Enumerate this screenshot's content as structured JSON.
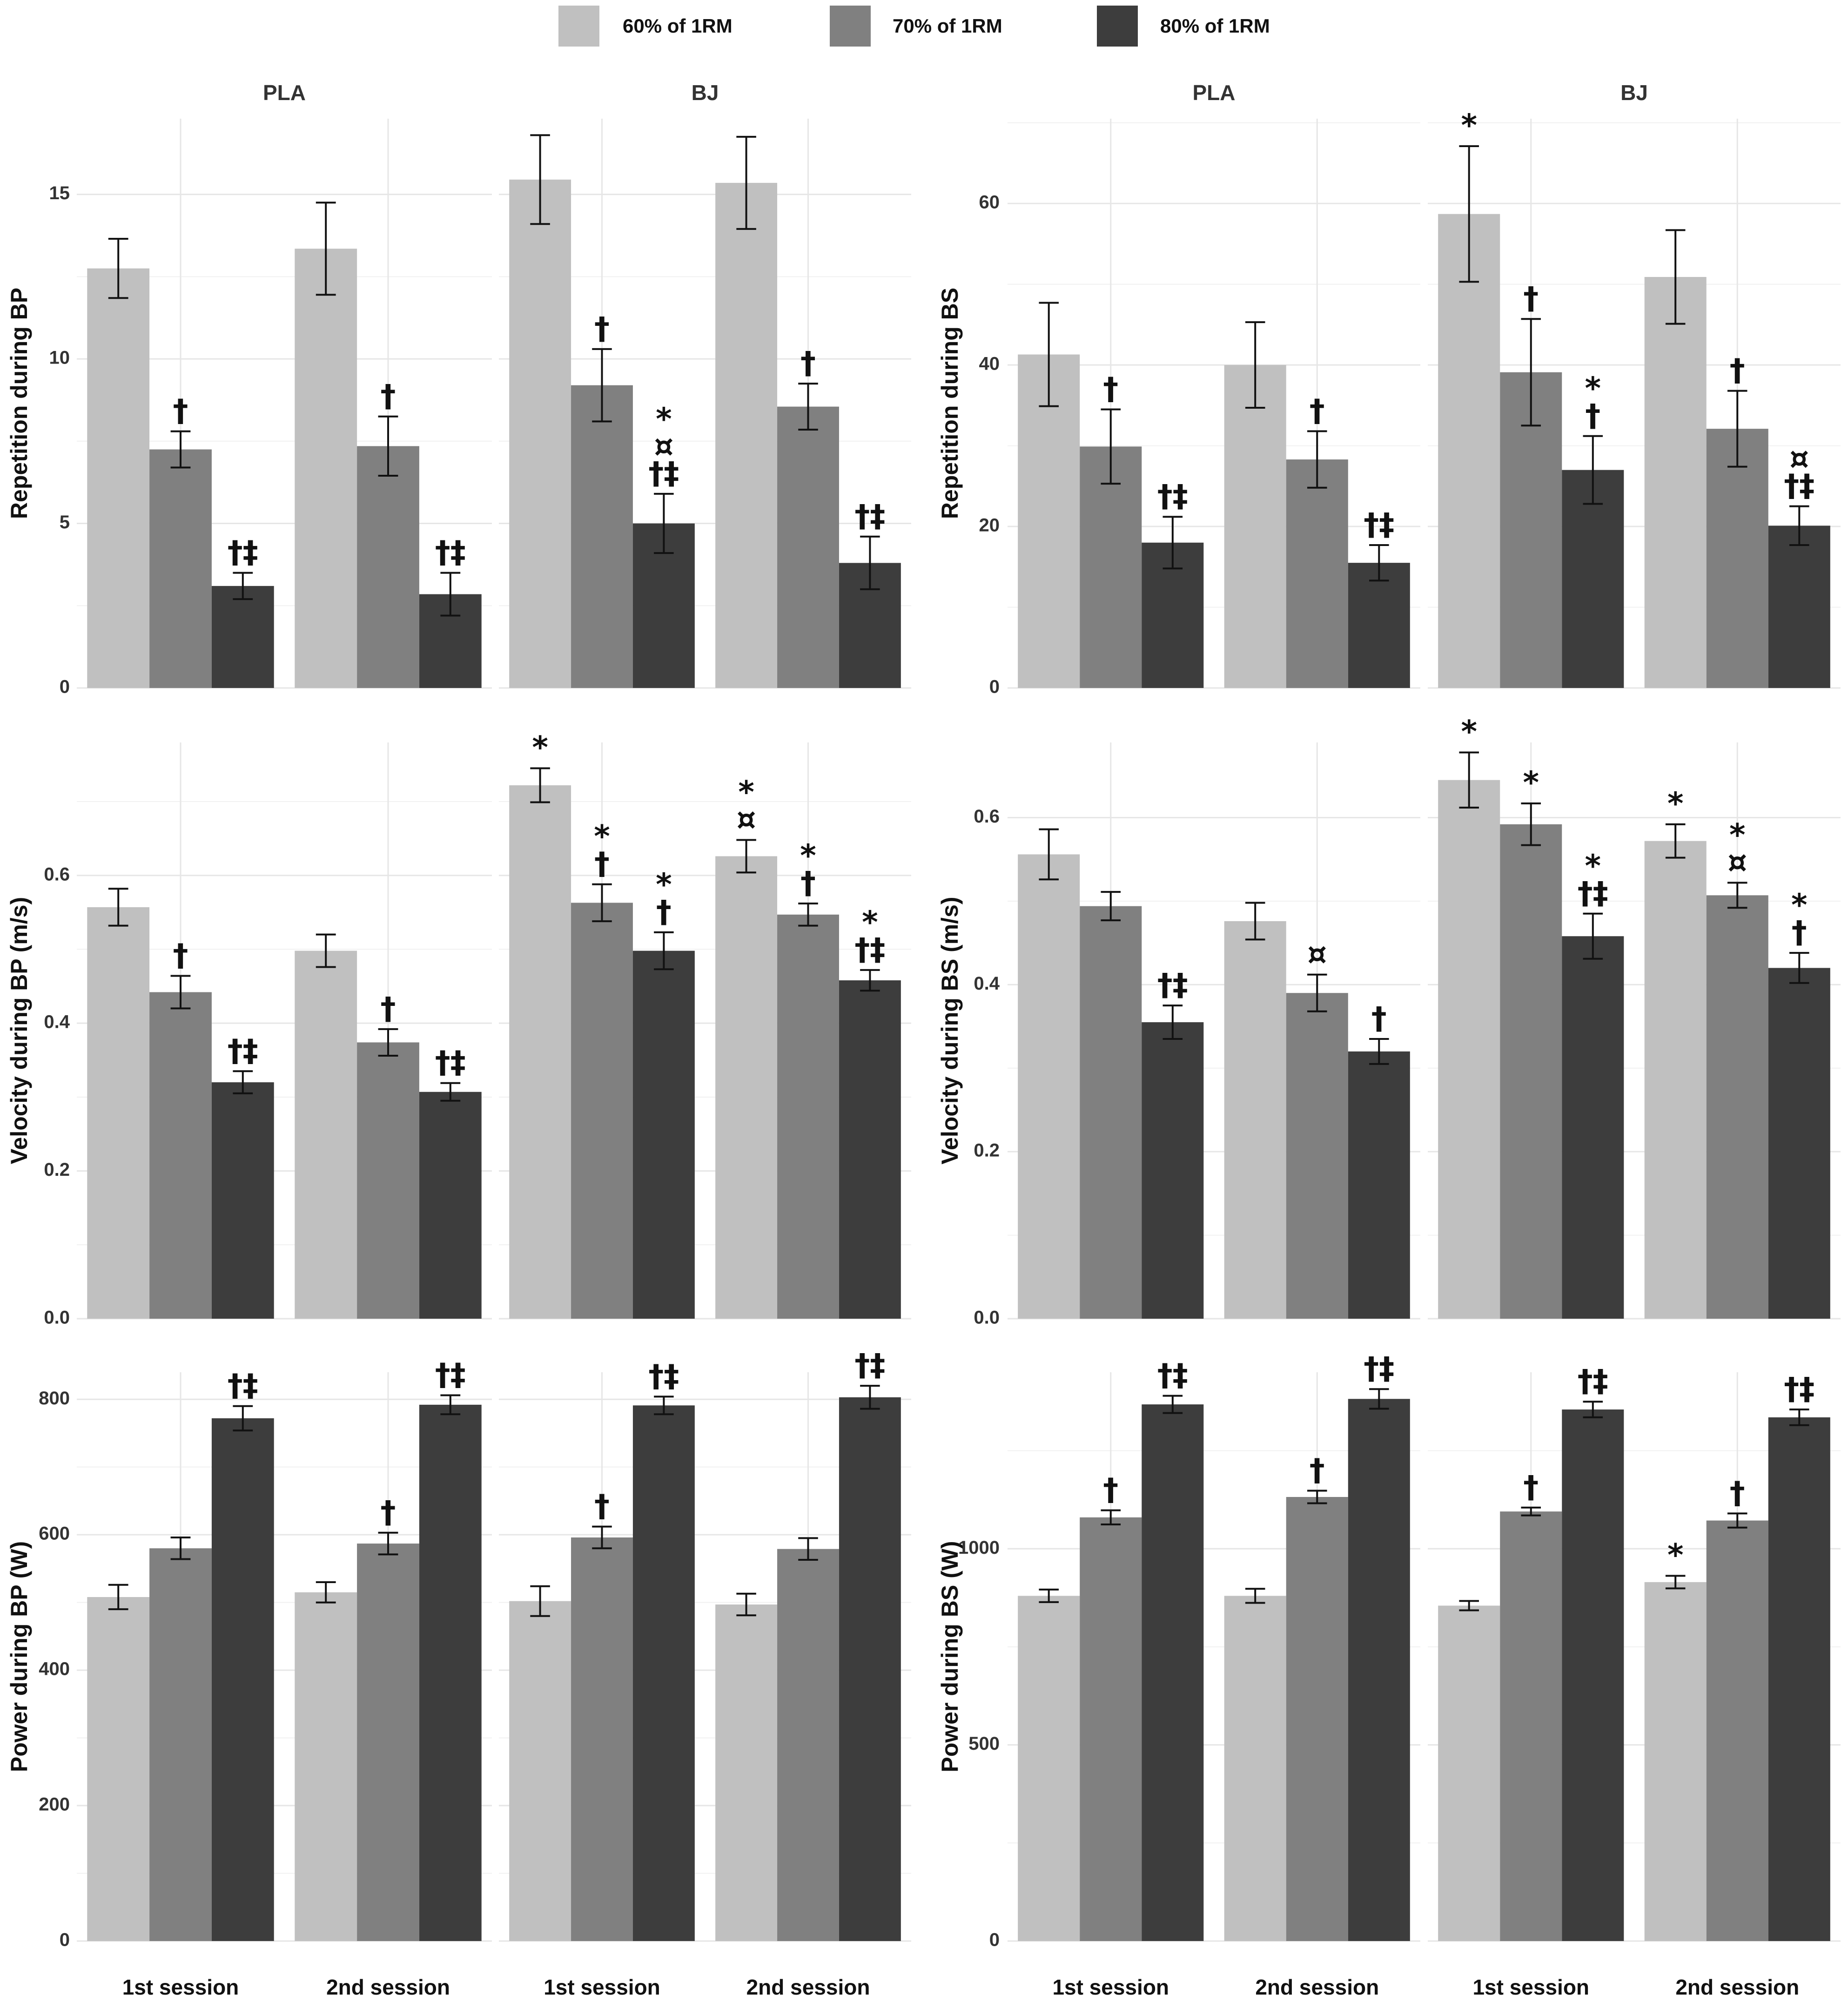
{
  "colors": {
    "60": "#c0c0c0",
    "70": "#808080",
    "80": "#3d3d3d"
  },
  "legend": [
    {
      "key": "60",
      "label": "60% of 1RM"
    },
    {
      "key": "70",
      "label": "70% of 1RM"
    },
    {
      "key": "80",
      "label": "80% of 1RM"
    }
  ],
  "chart_data": [
    {
      "type": "bar",
      "ylabel": "Repetition during BP",
      "ylim": [
        0,
        17.3
      ],
      "yticks": [
        0,
        5,
        10,
        15
      ],
      "categories": [
        "1st session",
        "2nd session"
      ],
      "facets": [
        {
          "strip": "PLA",
          "groups": [
            {
              "category": "1st session",
              "bars": [
                {
                  "series": "60",
                  "value": 12.75,
                  "err": 0.9,
                  "mark": ""
                },
                {
                  "series": "70",
                  "value": 7.25,
                  "err": 0.55,
                  "mark": "†"
                },
                {
                  "series": "80",
                  "value": 3.1,
                  "err": 0.4,
                  "mark": "†‡"
                }
              ]
            },
            {
              "category": "2nd session",
              "bars": [
                {
                  "series": "60",
                  "value": 13.35,
                  "err": 1.4,
                  "mark": ""
                },
                {
                  "series": "70",
                  "value": 7.35,
                  "err": 0.9,
                  "mark": "†"
                },
                {
                  "series": "80",
                  "value": 2.85,
                  "err": 0.65,
                  "mark": "†‡"
                }
              ]
            }
          ]
        },
        {
          "strip": "BJ",
          "groups": [
            {
              "category": "1st session",
              "bars": [
                {
                  "series": "60",
                  "value": 15.45,
                  "err": 1.35,
                  "mark": ""
                },
                {
                  "series": "70",
                  "value": 9.2,
                  "err": 1.1,
                  "mark": "†"
                },
                {
                  "series": "80",
                  "value": 5.0,
                  "err": 0.9,
                  "mark": "*\n¤\n†‡"
                }
              ]
            },
            {
              "category": "2nd session",
              "bars": [
                {
                  "series": "60",
                  "value": 15.35,
                  "err": 1.4,
                  "mark": ""
                },
                {
                  "series": "70",
                  "value": 8.55,
                  "err": 0.7,
                  "mark": "†"
                },
                {
                  "series": "80",
                  "value": 3.8,
                  "err": 0.8,
                  "mark": "†‡"
                }
              ]
            }
          ]
        }
      ]
    },
    {
      "type": "bar",
      "ylabel": "Repetition during BS",
      "ylim": [
        0,
        70.5
      ],
      "yticks": [
        0,
        20,
        40,
        60
      ],
      "categories": [
        "1st session",
        "2nd session"
      ],
      "facets": [
        {
          "strip": "PLA",
          "groups": [
            {
              "category": "1st session",
              "bars": [
                {
                  "series": "60",
                  "value": 41.3,
                  "err": 6.4,
                  "mark": ""
                },
                {
                  "series": "70",
                  "value": 29.9,
                  "err": 4.6,
                  "mark": "†"
                },
                {
                  "series": "80",
                  "value": 18.0,
                  "err": 3.2,
                  "mark": "†‡"
                }
              ]
            },
            {
              "category": "2nd session",
              "bars": [
                {
                  "series": "60",
                  "value": 40.0,
                  "err": 5.3,
                  "mark": ""
                },
                {
                  "series": "70",
                  "value": 28.3,
                  "err": 3.5,
                  "mark": "†"
                },
                {
                  "series": "80",
                  "value": 15.5,
                  "err": 2.2,
                  "mark": "†‡"
                }
              ]
            }
          ]
        },
        {
          "strip": "BJ",
          "groups": [
            {
              "category": "1st session",
              "bars": [
                {
                  "series": "60",
                  "value": 58.7,
                  "err": 8.4,
                  "mark": "*"
                },
                {
                  "series": "70",
                  "value": 39.1,
                  "err": 6.6,
                  "mark": "†"
                },
                {
                  "series": "80",
                  "value": 27.0,
                  "err": 4.2,
                  "mark": "*\n†"
                }
              ]
            },
            {
              "category": "2nd session",
              "bars": [
                {
                  "series": "60",
                  "value": 50.9,
                  "err": 5.8,
                  "mark": ""
                },
                {
                  "series": "70",
                  "value": 32.1,
                  "err": 4.7,
                  "mark": "†"
                },
                {
                  "series": "80",
                  "value": 20.1,
                  "err": 2.4,
                  "mark": "¤\n†‡"
                }
              ]
            }
          ]
        }
      ]
    },
    {
      "type": "bar",
      "ylabel": "Velocity during BP (m/s)",
      "ylim": [
        0,
        0.78
      ],
      "yticks": [
        0.0,
        0.2,
        0.4,
        0.6
      ],
      "categories": [
        "1st session",
        "2nd session"
      ],
      "facets": [
        {
          "strip": "",
          "groups": [
            {
              "category": "1st session",
              "bars": [
                {
                  "series": "60",
                  "value": 0.557,
                  "err": 0.025,
                  "mark": ""
                },
                {
                  "series": "70",
                  "value": 0.442,
                  "err": 0.022,
                  "mark": "†"
                },
                {
                  "series": "80",
                  "value": 0.32,
                  "err": 0.015,
                  "mark": "†‡"
                }
              ]
            },
            {
              "category": "2nd session",
              "bars": [
                {
                  "series": "60",
                  "value": 0.498,
                  "err": 0.022,
                  "mark": ""
                },
                {
                  "series": "70",
                  "value": 0.374,
                  "err": 0.018,
                  "mark": "†"
                },
                {
                  "series": "80",
                  "value": 0.307,
                  "err": 0.012,
                  "mark": "†‡"
                }
              ]
            }
          ]
        },
        {
          "strip": "",
          "groups": [
            {
              "category": "1st session",
              "bars": [
                {
                  "series": "60",
                  "value": 0.722,
                  "err": 0.023,
                  "mark": "*"
                },
                {
                  "series": "70",
                  "value": 0.563,
                  "err": 0.025,
                  "mark": "*\n†"
                },
                {
                  "series": "80",
                  "value": 0.498,
                  "err": 0.025,
                  "mark": "*\n†"
                }
              ]
            },
            {
              "category": "2nd session",
              "bars": [
                {
                  "series": "60",
                  "value": 0.626,
                  "err": 0.022,
                  "mark": "*\n¤"
                },
                {
                  "series": "70",
                  "value": 0.547,
                  "err": 0.015,
                  "mark": "*\n†"
                },
                {
                  "series": "80",
                  "value": 0.458,
                  "err": 0.014,
                  "mark": "*\n†‡"
                }
              ]
            }
          ]
        }
      ]
    },
    {
      "type": "bar",
      "ylabel": "Velocity during BS (m/s)",
      "ylim": [
        0,
        0.69
      ],
      "yticks": [
        0.0,
        0.2,
        0.4,
        0.6
      ],
      "categories": [
        "1st session",
        "2nd session"
      ],
      "facets": [
        {
          "strip": "",
          "groups": [
            {
              "category": "1st session",
              "bars": [
                {
                  "series": "60",
                  "value": 0.556,
                  "err": 0.03,
                  "mark": ""
                },
                {
                  "series": "70",
                  "value": 0.494,
                  "err": 0.017,
                  "mark": ""
                },
                {
                  "series": "80",
                  "value": 0.355,
                  "err": 0.02,
                  "mark": "†‡"
                }
              ]
            },
            {
              "category": "2nd session",
              "bars": [
                {
                  "series": "60",
                  "value": 0.476,
                  "err": 0.022,
                  "mark": ""
                },
                {
                  "series": "70",
                  "value": 0.39,
                  "err": 0.022,
                  "mark": "¤"
                },
                {
                  "series": "80",
                  "value": 0.32,
                  "err": 0.015,
                  "mark": "†"
                }
              ]
            }
          ]
        },
        {
          "strip": "",
          "groups": [
            {
              "category": "1st session",
              "bars": [
                {
                  "series": "60",
                  "value": 0.645,
                  "err": 0.033,
                  "mark": "*"
                },
                {
                  "series": "70",
                  "value": 0.592,
                  "err": 0.025,
                  "mark": "*"
                },
                {
                  "series": "80",
                  "value": 0.458,
                  "err": 0.027,
                  "mark": "*\n†‡"
                }
              ]
            },
            {
              "category": "2nd session",
              "bars": [
                {
                  "series": "60",
                  "value": 0.572,
                  "err": 0.02,
                  "mark": "*"
                },
                {
                  "series": "70",
                  "value": 0.507,
                  "err": 0.015,
                  "mark": "*\n¤"
                },
                {
                  "series": "80",
                  "value": 0.42,
                  "err": 0.018,
                  "mark": "*\n†"
                }
              ]
            }
          ]
        }
      ]
    },
    {
      "type": "bar",
      "ylabel": "Power during BP (W)",
      "ylim": [
        0,
        840
      ],
      "yticks": [
        0,
        200,
        400,
        600,
        800
      ],
      "categories": [
        "1st session",
        "2nd session"
      ],
      "facets": [
        {
          "strip": "",
          "groups": [
            {
              "category": "1st session",
              "bars": [
                {
                  "series": "60",
                  "value": 508,
                  "err": 18,
                  "mark": ""
                },
                {
                  "series": "70",
                  "value": 580,
                  "err": 16,
                  "mark": ""
                },
                {
                  "series": "80",
                  "value": 772,
                  "err": 18,
                  "mark": "†‡"
                }
              ]
            },
            {
              "category": "2nd session",
              "bars": [
                {
                  "series": "60",
                  "value": 515,
                  "err": 15,
                  "mark": ""
                },
                {
                  "series": "70",
                  "value": 587,
                  "err": 16,
                  "mark": "†"
                },
                {
                  "series": "80",
                  "value": 792,
                  "err": 14,
                  "mark": "†‡"
                }
              ]
            }
          ]
        },
        {
          "strip": "",
          "groups": [
            {
              "category": "1st session",
              "bars": [
                {
                  "series": "60",
                  "value": 502,
                  "err": 22,
                  "mark": ""
                },
                {
                  "series": "70",
                  "value": 596,
                  "err": 16,
                  "mark": "†"
                },
                {
                  "series": "80",
                  "value": 791,
                  "err": 13,
                  "mark": "†‡"
                }
              ]
            },
            {
              "category": "2nd session",
              "bars": [
                {
                  "series": "60",
                  "value": 497,
                  "err": 16,
                  "mark": ""
                },
                {
                  "series": "70",
                  "value": 579,
                  "err": 16,
                  "mark": ""
                },
                {
                  "series": "80",
                  "value": 803,
                  "err": 17,
                  "mark": "†‡"
                }
              ]
            }
          ]
        }
      ]
    },
    {
      "type": "bar",
      "ylabel": "Power during BS (W)",
      "ylim": [
        0,
        1450
      ],
      "yticks": [
        0,
        500,
        1000
      ],
      "categories": [
        "1st session",
        "2nd session"
      ],
      "facets": [
        {
          "strip": "",
          "groups": [
            {
              "category": "1st session",
              "bars": [
                {
                  "series": "60",
                  "value": 880,
                  "err": 16,
                  "mark": ""
                },
                {
                  "series": "70",
                  "value": 1080,
                  "err": 18,
                  "mark": "†"
                },
                {
                  "series": "80",
                  "value": 1368,
                  "err": 22,
                  "mark": "†‡"
                }
              ]
            },
            {
              "category": "2nd session",
              "bars": [
                {
                  "series": "60",
                  "value": 880,
                  "err": 18,
                  "mark": ""
                },
                {
                  "series": "70",
                  "value": 1132,
                  "err": 16,
                  "mark": "†"
                },
                {
                  "series": "80",
                  "value": 1382,
                  "err": 25,
                  "mark": "†‡"
                }
              ]
            }
          ]
        },
        {
          "strip": "",
          "groups": [
            {
              "category": "1st session",
              "bars": [
                {
                  "series": "60",
                  "value": 855,
                  "err": 12,
                  "mark": ""
                },
                {
                  "series": "70",
                  "value": 1095,
                  "err": 10,
                  "mark": "†"
                },
                {
                  "series": "80",
                  "value": 1355,
                  "err": 20,
                  "mark": "†‡"
                }
              ]
            },
            {
              "category": "2nd session",
              "bars": [
                {
                  "series": "60",
                  "value": 915,
                  "err": 16,
                  "mark": "*"
                },
                {
                  "series": "70",
                  "value": 1072,
                  "err": 18,
                  "mark": "†"
                },
                {
                  "series": "80",
                  "value": 1335,
                  "err": 20,
                  "mark": "†‡"
                }
              ]
            }
          ]
        }
      ]
    }
  ]
}
